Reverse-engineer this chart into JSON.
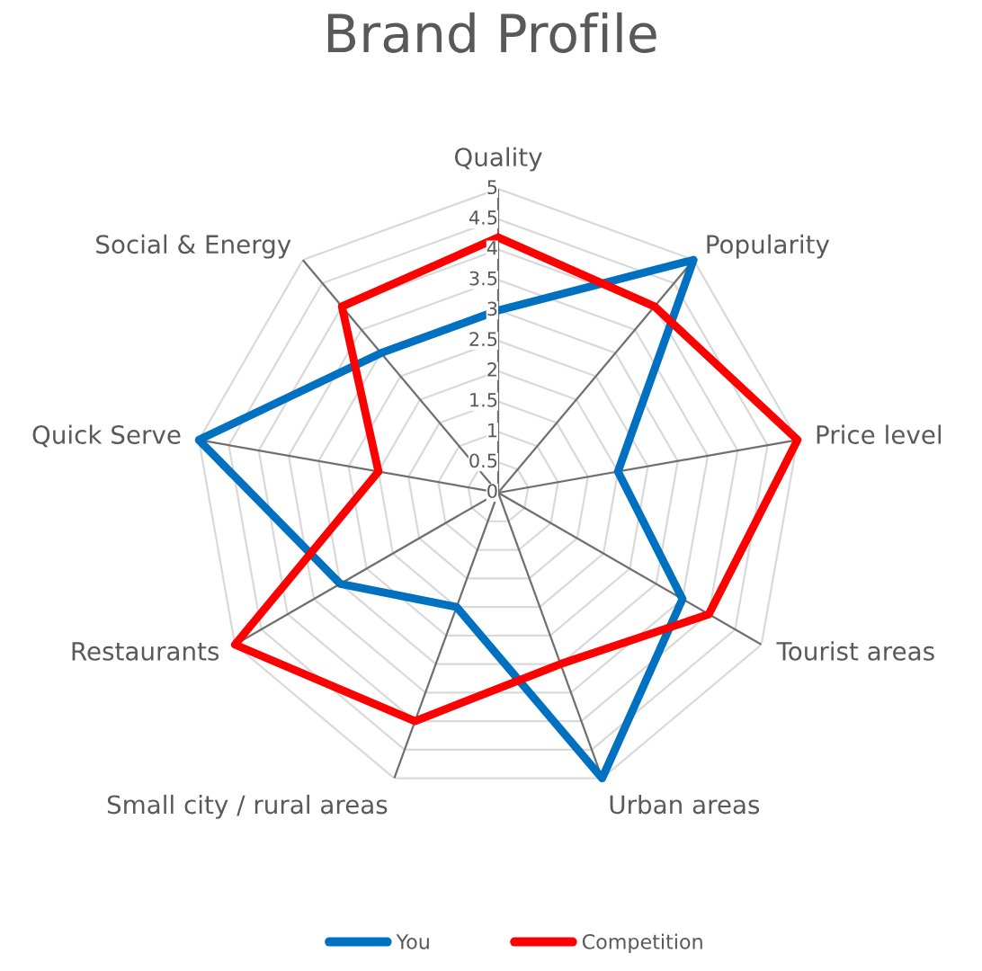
{
  "chart_data": {
    "type": "radar",
    "title": "Brand Profile",
    "categories": [
      "Quality",
      "Popularity",
      "Price level",
      "Tourist areas",
      "Urban areas",
      "Small city / rural areas",
      "Restaurants",
      "Quick Serve",
      "Social & Energy"
    ],
    "series": [
      {
        "name": "You",
        "color": "#0070c0",
        "values": [
          3,
          5,
          2,
          3.5,
          5,
          2,
          3,
          5,
          3
        ]
      },
      {
        "name": "Competition",
        "color": "#ff0000",
        "values": [
          4.2,
          4,
          5,
          4,
          3,
          4,
          5,
          2,
          4
        ]
      }
    ],
    "ylim": [
      0,
      5
    ],
    "yticks": [
      0,
      0.5,
      1,
      1.5,
      2,
      2.5,
      3,
      3.5,
      4,
      4.5,
      5
    ],
    "grid": true,
    "legend": "bottom"
  }
}
